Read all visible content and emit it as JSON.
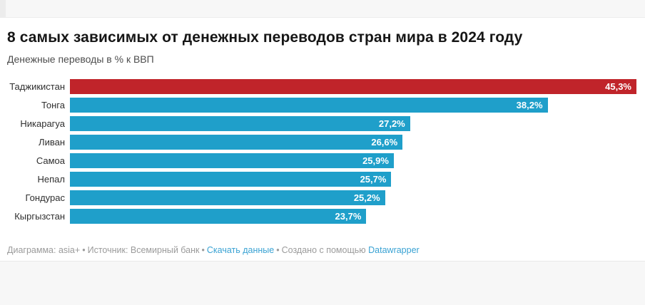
{
  "page": {
    "title": "8 самых зависимых от денежных переводов стран мира в 2024 году",
    "subtitle": "Денежные переводы в % к ВВП"
  },
  "chart_data": {
    "type": "bar",
    "orientation": "horizontal",
    "title": "8 самых зависимых от денежных переводов стран мира в 2024 году",
    "subtitle": "Денежные переводы в % к ВВП",
    "categories": [
      "Таджикистан",
      "Тонга",
      "Никарагуа",
      "Ливан",
      "Самоа",
      "Непал",
      "Гондурас",
      "Кыргызстан"
    ],
    "values": [
      45.3,
      38.2,
      27.2,
      26.6,
      25.9,
      25.7,
      25.2,
      23.7
    ],
    "value_labels": [
      "45,3%",
      "38,2%",
      "27,2%",
      "26,6%",
      "25,9%",
      "25,7%",
      "25,2%",
      "23,7%"
    ],
    "xlim": [
      0,
      45.3
    ],
    "xlabel": "",
    "ylabel": "",
    "grid": false,
    "legend": false,
    "value_label_position": "inside-end",
    "highlight_color": "#c0242a",
    "base_color": "#1f9fca",
    "bar_colors": [
      "#c0242a",
      "#1f9fca",
      "#1f9fca",
      "#1f9fca",
      "#1f9fca",
      "#1f9fca",
      "#1f9fca",
      "#1f9fca"
    ]
  },
  "footer": {
    "byline": "Диаграмма: asia+",
    "source": "Источник: Всемирный банк",
    "download_link": "Скачать данные",
    "created_with": "Создано с помощью",
    "datawrapper_link": "Datawrapper",
    "sep": "•"
  },
  "colors": {
    "band_background": "#f7f7f7",
    "content_background": "#ffffff",
    "link_blue": "#39a2d3",
    "footer_text": "#9b9b9b"
  }
}
